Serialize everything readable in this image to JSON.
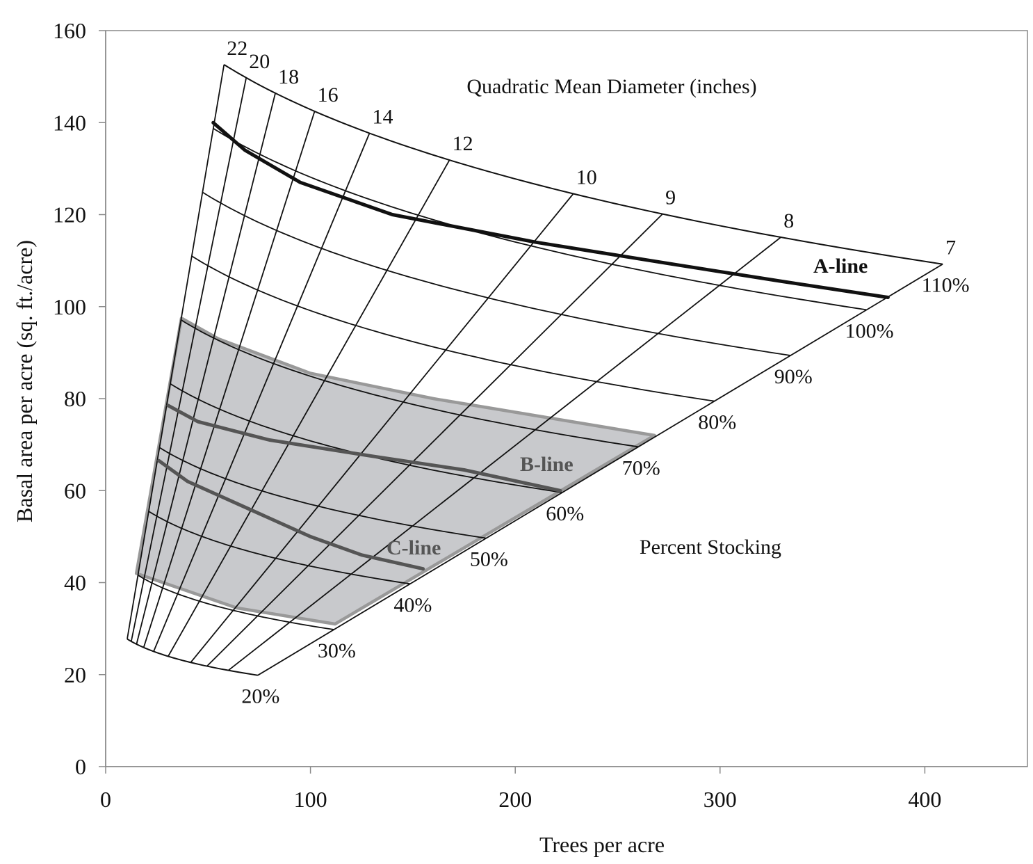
{
  "chart_data": {
    "type": "line",
    "title": "",
    "xlabel": "Trees per acre",
    "ylabel": "Basal area per acre (sq. ft./acre)",
    "xlim": [
      0,
      450
    ],
    "ylim": [
      0,
      160
    ],
    "xticks": [
      0,
      100,
      200,
      300,
      400
    ],
    "yticks": [
      0,
      20,
      40,
      60,
      80,
      100,
      120,
      140,
      160
    ],
    "grid": false,
    "legend": "none",
    "annotations": {
      "diameter_title": "Quadratic Mean Diameter (inches)",
      "stocking_title": "Percent Stocking"
    },
    "diameters": [
      {
        "label": "22",
        "value": 22
      },
      {
        "label": "20",
        "value": 20
      },
      {
        "label": "18",
        "value": 18
      },
      {
        "label": "16",
        "value": 16
      },
      {
        "label": "14",
        "value": 14
      },
      {
        "label": "12",
        "value": 12
      },
      {
        "label": "10",
        "value": 10
      },
      {
        "label": "9",
        "value": 9
      },
      {
        "label": "8",
        "value": 8
      },
      {
        "label": "7",
        "value": 7
      }
    ],
    "stocking_levels": [
      {
        "label": "20%",
        "value": 20
      },
      {
        "label": "30%",
        "value": 30
      },
      {
        "label": "40%",
        "value": 40
      },
      {
        "label": "50%",
        "value": 50
      },
      {
        "label": "60%",
        "value": 60
      },
      {
        "label": "70%",
        "value": 70
      },
      {
        "label": "80%",
        "value": 80
      },
      {
        "label": "90%",
        "value": 90
      },
      {
        "label": "100%",
        "value": 100
      },
      {
        "label": "110%",
        "value": 110
      }
    ],
    "series": [
      {
        "name": "A-line",
        "label": "A-line",
        "color": "#111111",
        "points": [
          [
            52.5,
            140
          ],
          [
            68,
            134
          ],
          [
            95,
            127
          ],
          [
            140,
            120
          ],
          [
            210,
            114
          ],
          [
            280,
            109
          ],
          [
            330,
            105.5
          ],
          [
            382,
            102
          ]
        ]
      },
      {
        "name": "B-line",
        "label": "B-line",
        "color": "#555555",
        "points": [
          [
            30.5,
            78.5
          ],
          [
            45,
            75
          ],
          [
            80,
            71
          ],
          [
            130,
            67.5
          ],
          [
            175,
            64.5
          ],
          [
            222,
            60
          ]
        ]
      },
      {
        "name": "C-line",
        "label": "C-line",
        "color": "#555555",
        "points": [
          [
            26,
            66.5
          ],
          [
            40,
            62
          ],
          [
            70,
            56
          ],
          [
            100,
            50
          ],
          [
            125,
            46
          ],
          [
            155,
            43
          ]
        ]
      }
    ],
    "shaded_region": {
      "name": "recommended-stocking-zone",
      "color": "#c8c9cc",
      "edge_color": "#999999",
      "points": [
        [
          37,
          97.5
        ],
        [
          55,
          93
        ],
        [
          100,
          85.5
        ],
        [
          160,
          80
        ],
        [
          268,
          72
        ],
        [
          112,
          31
        ],
        [
          64,
          34.5
        ],
        [
          15,
          42
        ]
      ]
    }
  },
  "colors": {
    "axis": "#888888",
    "grid_curves": "#111111",
    "inner_curves": "#333333",
    "shade_fill": "#c8c9cc",
    "shade_edge": "#999999",
    "b_c_lines": "#555555"
  }
}
